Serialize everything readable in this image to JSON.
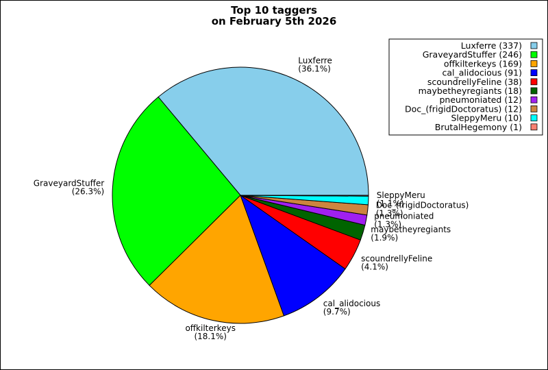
{
  "chart_data": {
    "type": "pie",
    "title_lines": [
      "Top 10 taggers",
      "on February 5th 2026"
    ],
    "categories": [
      "Luxferre",
      "GraveyardStuffer",
      "offkilterkeys",
      "cal_alidocious",
      "scoundrellyFeline",
      "maybetheyregiants",
      "pneumoniated",
      "Doc_(frigidDoctoratus)",
      "SleppyMeru",
      "BrutalHegemony"
    ],
    "values": [
      337,
      246,
      169,
      91,
      38,
      18,
      12,
      12,
      10,
      1
    ],
    "colors": [
      "#87ceeb",
      "#00ff00",
      "#ffa500",
      "#0000ff",
      "#ff0000",
      "#006400",
      "#a020f0",
      "#cd853f",
      "#00ffff",
      "#fa8072"
    ],
    "legend_labels": [
      "Luxferre (337)",
      "GraveyardStuffer (246)",
      "offkilterkeys (169)",
      "cal_alidocious (91)",
      "scoundrellyFeline (38)",
      "maybetheyregiants (18)",
      "pneumoniated (12)",
      "Doc_(frigidDoctoratus) (12)",
      "SleppyMeru (10)",
      "BrutalHegemony (1)"
    ],
    "slice_labels": [
      {
        "name": "Luxferre",
        "pct": "(36.1%)"
      },
      {
        "name": "GraveyardStuffer",
        "pct": "(26.3%)"
      },
      {
        "name": "offkilterkeys",
        "pct": "(18.1%)"
      },
      {
        "name": "cal_alidocious",
        "pct": "(9.7%)"
      },
      {
        "name": "scoundrellyFeline",
        "pct": "(4.1%)"
      },
      {
        "name": "maybetheyregiants",
        "pct": "(1.9%)"
      },
      {
        "name": "pneumoniated",
        "pct": "(1.3%)"
      },
      {
        "name": "Doc_(frigidDoctoratus)",
        "pct": "(1.3%)"
      },
      {
        "name": "SleppyMeru",
        "pct": "(1.1%)"
      }
    ],
    "legend_position": "top-right"
  }
}
